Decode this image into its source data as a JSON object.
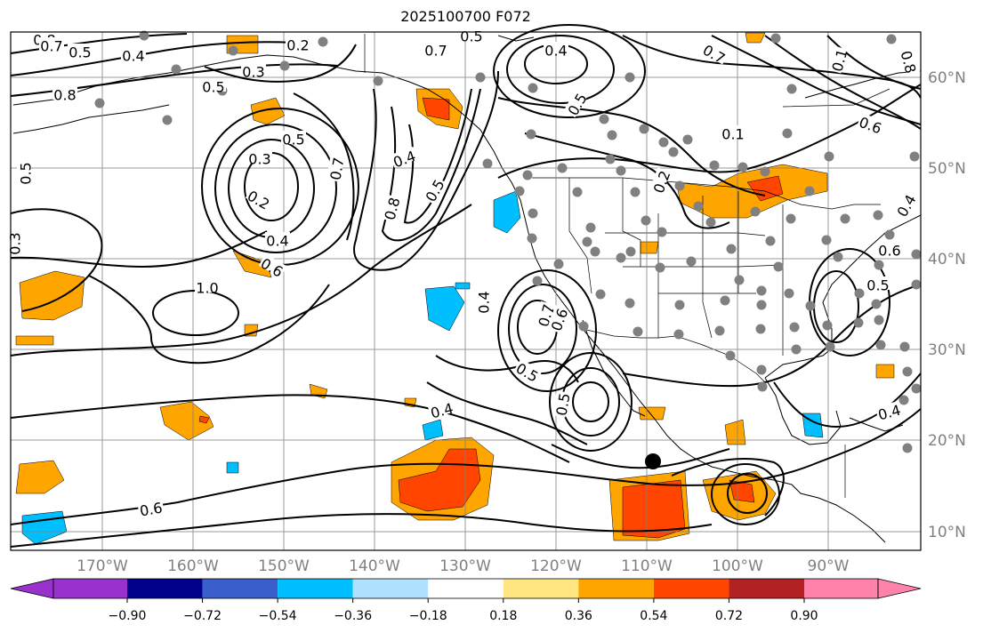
{
  "title": "2025100700 F072",
  "map": {
    "longitude_labels": [
      "170°W",
      "160°W",
      "150°W",
      "140°W",
      "130°W",
      "120°W",
      "110°W",
      "100°W",
      "90°W"
    ],
    "latitude_labels": [
      "60°N",
      "50°N",
      "40°N",
      "30°N",
      "20°N",
      "10°N"
    ],
    "contour_labels": [
      "0.8",
      "0.7",
      "0.5",
      "0.4",
      "0.2",
      "0.3",
      "0.5",
      "0.8",
      "0.7",
      "0.5",
      "0.4",
      "0.5",
      "0.7",
      "0.1",
      "0.8",
      "0.3",
      "0.5",
      "0.4",
      "0.7",
      "0.2",
      "0.4",
      "0.6",
      "1.0",
      "0.8",
      "0.5",
      "0.7",
      "0.6",
      "0.5",
      "0.4",
      "0.5",
      "0.3",
      "0.5",
      "0.6",
      "0.6",
      "0.2",
      "0.1",
      "0.4",
      "0.6",
      "0.4",
      "0.5",
      "0.4"
    ],
    "colors": {
      "positive_shading": "#ffa500",
      "strong_positive": "#ff4500",
      "negative_shading": "#00bfff",
      "station_dots": "#808080",
      "marker": "#000000"
    }
  },
  "colorbar": {
    "ticks": [
      "−0.90",
      "−0.72",
      "−0.54",
      "−0.36",
      "−0.18",
      "0.18",
      "0.36",
      "0.54",
      "0.72",
      "0.90"
    ],
    "colors": [
      "#9932cc",
      "#00008b",
      "#3a5fcd",
      "#00bfff",
      "#b0e2ff",
      "#ffffff",
      "#ffe680",
      "#ffa500",
      "#ff4500",
      "#b22222",
      "#ff82ab"
    ]
  }
}
